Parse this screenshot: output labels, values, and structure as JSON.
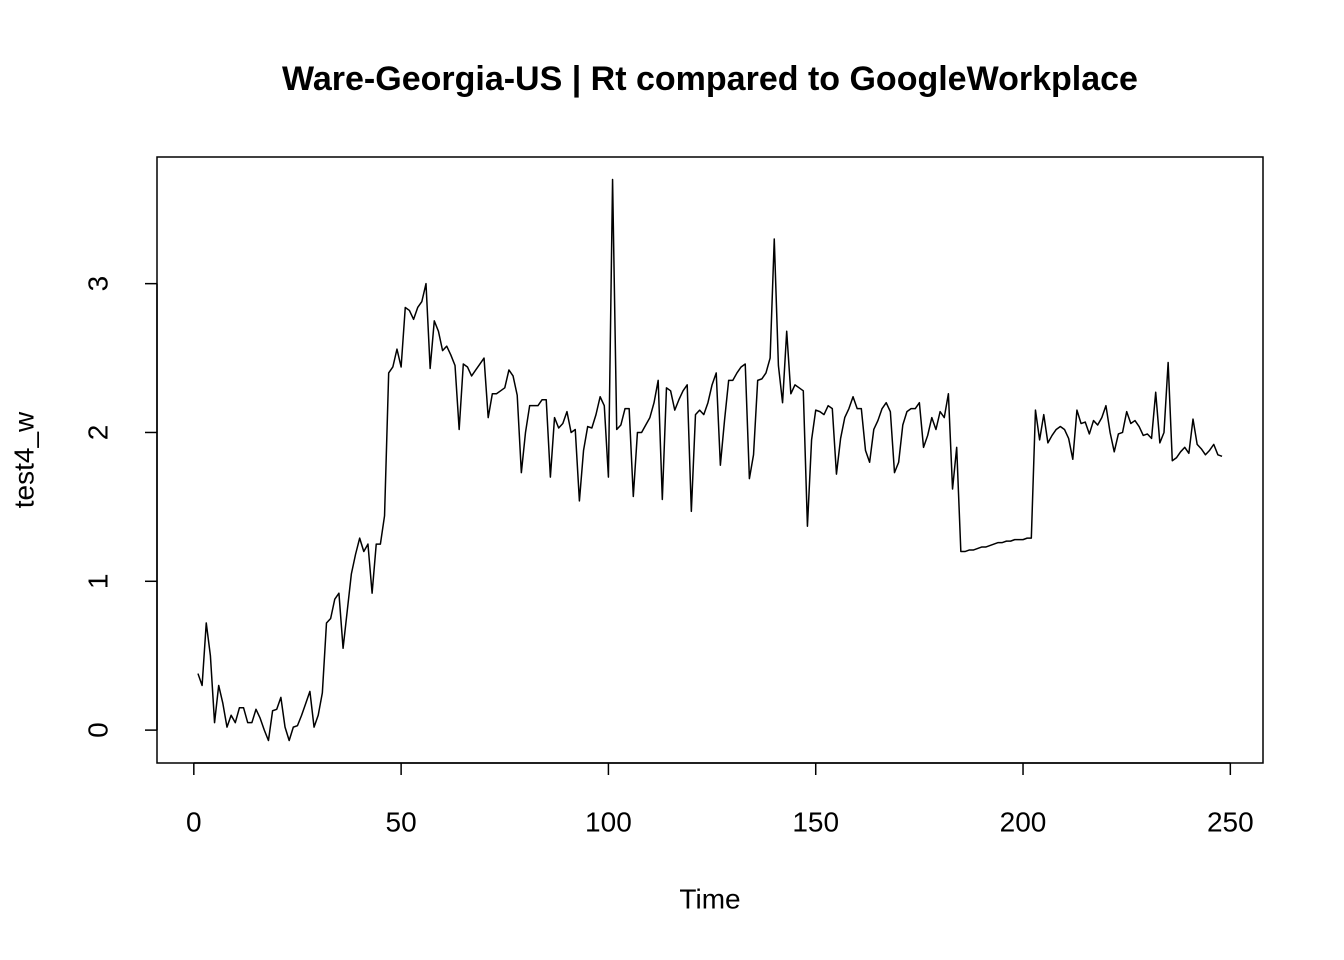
{
  "chart_data": {
    "type": "line",
    "title": "Ware-Georgia-US | Rt compared to GoogleWorkplace",
    "xlabel": "Time",
    "ylabel": "test4_w",
    "x": [
      1,
      2,
      3,
      4,
      5,
      6,
      7,
      8,
      9,
      10,
      11,
      12,
      13,
      14,
      15,
      16,
      17,
      18,
      19,
      20,
      21,
      22,
      23,
      24,
      25,
      26,
      27,
      28,
      29,
      30,
      31,
      32,
      33,
      34,
      35,
      36,
      37,
      38,
      39,
      40,
      41,
      42,
      43,
      44,
      45,
      46,
      47,
      48,
      49,
      50,
      51,
      52,
      53,
      54,
      55,
      56,
      57,
      58,
      59,
      60,
      61,
      62,
      63,
      64,
      65,
      66,
      67,
      68,
      69,
      70,
      71,
      72,
      73,
      74,
      75,
      76,
      77,
      78,
      79,
      80,
      81,
      82,
      83,
      84,
      85,
      86,
      87,
      88,
      89,
      90,
      91,
      92,
      93,
      94,
      95,
      96,
      97,
      98,
      99,
      100,
      101,
      102,
      103,
      104,
      105,
      106,
      107,
      108,
      109,
      110,
      111,
      112,
      113,
      114,
      115,
      116,
      117,
      118,
      119,
      120,
      121,
      122,
      123,
      124,
      125,
      126,
      127,
      128,
      129,
      130,
      131,
      132,
      133,
      134,
      135,
      136,
      137,
      138,
      139,
      140,
      141,
      142,
      143,
      144,
      145,
      146,
      147,
      148,
      149,
      150,
      151,
      152,
      153,
      154,
      155,
      156,
      157,
      158,
      159,
      160,
      161,
      162,
      163,
      164,
      165,
      166,
      167,
      168,
      169,
      170,
      171,
      172,
      173,
      174,
      175,
      176,
      177,
      178,
      179,
      180,
      181,
      182,
      183,
      184,
      185,
      186,
      187,
      188,
      189,
      190,
      191,
      192,
      193,
      194,
      195,
      196,
      197,
      198,
      199,
      200,
      201,
      202,
      203,
      204,
      205,
      206,
      207,
      208,
      209,
      210,
      211,
      212,
      213,
      214,
      215,
      216,
      217,
      218,
      219,
      220,
      221,
      222,
      223,
      224,
      225,
      226,
      227,
      228,
      229,
      230,
      231,
      232,
      233,
      234,
      235,
      236,
      237,
      238,
      239,
      240,
      241,
      242,
      243,
      244,
      245,
      246,
      247,
      248
    ],
    "series": [
      {
        "color": "#000000",
        "values": [
          0.38,
          0.3,
          0.72,
          0.5,
          0.05,
          0.3,
          0.18,
          0.02,
          0.1,
          0.05,
          0.15,
          0.15,
          0.05,
          0.05,
          0.14,
          0.08,
          0.0,
          -0.07,
          0.13,
          0.14,
          0.22,
          0.02,
          -0.07,
          0.02,
          0.03,
          0.1,
          0.18,
          0.26,
          0.02,
          0.1,
          0.25,
          0.72,
          0.75,
          0.88,
          0.92,
          0.55,
          0.8,
          1.05,
          1.18,
          1.29,
          1.2,
          1.25,
          0.92,
          1.25,
          1.25,
          1.44,
          2.4,
          2.44,
          2.56,
          2.44,
          2.84,
          2.82,
          2.76,
          2.84,
          2.88,
          3.0,
          2.43,
          2.75,
          2.68,
          2.55,
          2.58,
          2.52,
          2.45,
          2.02,
          2.46,
          2.44,
          2.38,
          2.42,
          2.46,
          2.5,
          2.1,
          2.26,
          2.26,
          2.28,
          2.3,
          2.42,
          2.38,
          2.25,
          1.73,
          2.0,
          2.18,
          2.18,
          2.18,
          2.22,
          2.22,
          1.7,
          2.1,
          2.03,
          2.06,
          2.14,
          2.0,
          2.02,
          1.54,
          1.88,
          2.04,
          2.03,
          2.12,
          2.24,
          2.18,
          1.7,
          3.7,
          2.02,
          2.05,
          2.16,
          2.16,
          1.57,
          2.0,
          2.0,
          2.05,
          2.1,
          2.2,
          2.35,
          1.55,
          2.3,
          2.28,
          2.15,
          2.22,
          2.28,
          2.32,
          1.47,
          2.12,
          2.15,
          2.12,
          2.2,
          2.32,
          2.4,
          1.78,
          2.08,
          2.35,
          2.35,
          2.4,
          2.44,
          2.46,
          1.69,
          1.85,
          2.35,
          2.36,
          2.4,
          2.5,
          3.3,
          2.45,
          2.2,
          2.68,
          2.26,
          2.32,
          2.3,
          2.28,
          1.37,
          1.95,
          2.15,
          2.14,
          2.12,
          2.18,
          2.16,
          1.72,
          1.96,
          2.1,
          2.16,
          2.24,
          2.16,
          2.16,
          1.88,
          1.8,
          2.02,
          2.08,
          2.16,
          2.2,
          2.14,
          1.73,
          1.8,
          2.05,
          2.14,
          2.16,
          2.16,
          2.2,
          1.9,
          1.98,
          2.1,
          2.02,
          2.14,
          2.1,
          2.26,
          1.62,
          1.9,
          1.2,
          1.2,
          1.21,
          1.21,
          1.22,
          1.23,
          1.23,
          1.24,
          1.25,
          1.26,
          1.26,
          1.27,
          1.27,
          1.28,
          1.28,
          1.28,
          1.29,
          1.29,
          2.15,
          1.95,
          2.12,
          1.93,
          1.98,
          2.02,
          2.04,
          2.02,
          1.96,
          1.82,
          2.15,
          2.06,
          2.07,
          1.99,
          2.08,
          2.05,
          2.1,
          2.18,
          2.0,
          1.87,
          1.99,
          2.0,
          2.14,
          2.06,
          2.08,
          2.04,
          1.98,
          1.99,
          1.96,
          2.27,
          1.93,
          2.0,
          2.47,
          1.81,
          1.83,
          1.87,
          1.9,
          1.86,
          2.09,
          1.92,
          1.89,
          1.85,
          1.88,
          1.92,
          1.85,
          1.84
        ]
      }
    ],
    "xlim": [
      -8.88,
      257.88
    ],
    "ylim": [
      -0.221,
      3.851
    ],
    "xticks": [
      0,
      50,
      100,
      150,
      200,
      250
    ],
    "yticks": [
      0,
      1,
      2,
      3
    ]
  }
}
